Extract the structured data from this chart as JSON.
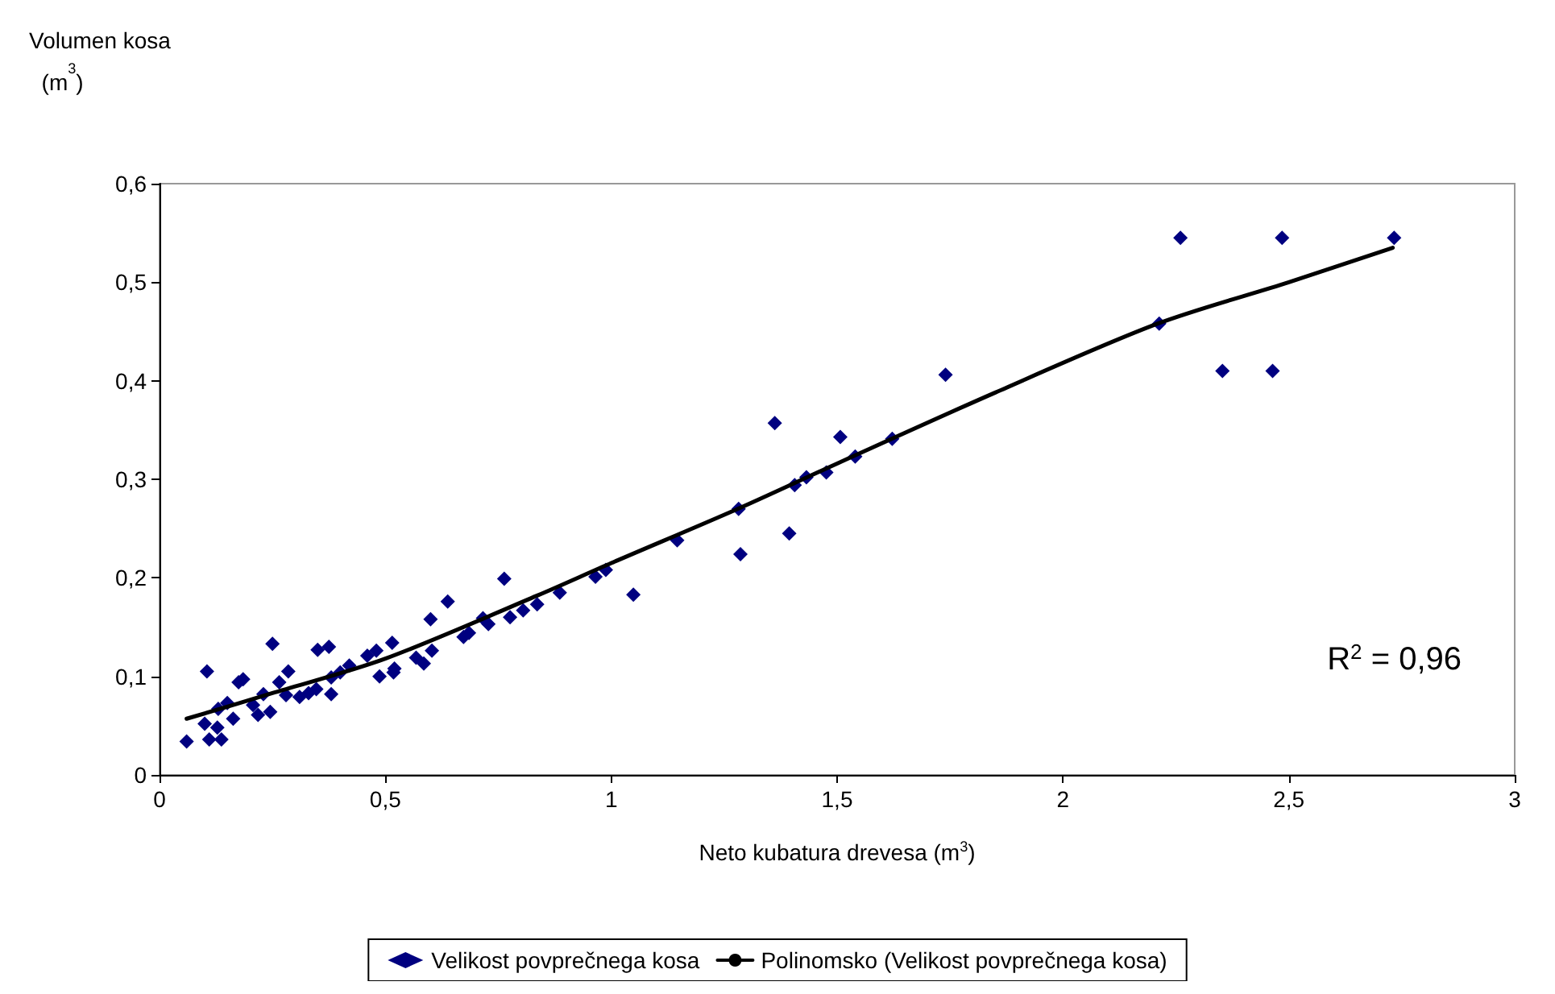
{
  "chart_data": {
    "type": "scatter",
    "xlabel": "Neto kubatura drevesa (m$^{3}$)",
    "ylabel": "Volumen kosa (m$^{3}$)",
    "xlim": [
      0,
      3
    ],
    "xticks": [
      0,
      {
        "value": 0.5,
        "label": "0,5"
      },
      1,
      {
        "value": 1.5,
        "label": "1,5"
      },
      2,
      {
        "value": 2.5,
        "label": "2,5"
      },
      3
    ],
    "ylim": [
      0,
      0.6
    ],
    "yticks": [
      0,
      {
        "value": 0.1,
        "label": "0,1"
      },
      {
        "value": 0.2,
        "label": "0,2"
      },
      {
        "value": 0.3,
        "label": "0,3"
      },
      {
        "value": 0.4,
        "label": "0,4"
      },
      {
        "value": 0.5,
        "label": "0,5"
      },
      {
        "value": 0.6,
        "label": "0,6"
      }
    ],
    "grid": false,
    "legend": "bottom",
    "annotations": [
      "R$^{2}$ = 0,96"
    ],
    "series": [
      {
        "name": "Velikost povprečnega kosa",
        "marker": "diamond",
        "color": "#000080",
        "x": [
          0.06,
          0.105,
          0.1,
          0.11,
          0.128,
          0.137,
          0.13,
          0.15,
          0.163,
          0.175,
          0.185,
          0.207,
          0.218,
          0.23,
          0.245,
          0.25,
          0.265,
          0.285,
          0.28,
          0.31,
          0.33,
          0.347,
          0.35,
          0.375,
          0.38,
          0.38,
          0.4,
          0.42,
          0.46,
          0.48,
          0.487,
          0.515,
          0.52,
          0.518,
          0.568,
          0.585,
          0.603,
          0.6,
          0.638,
          0.673,
          0.685,
          0.716,
          0.728,
          0.763,
          0.776,
          0.805,
          0.836,
          0.886,
          0.965,
          0.988,
          1.049,
          1.146,
          1.282,
          1.286,
          1.362,
          1.394,
          1.406,
          1.432,
          1.476,
          1.507,
          1.54,
          1.622,
          1.74,
          2.213,
          2.26,
          2.353,
          2.464,
          2.485,
          2.733
        ],
        "values": [
          0.034,
          0.105,
          0.052,
          0.036,
          0.048,
          0.036,
          0.067,
          0.073,
          0.057,
          0.094,
          0.097,
          0.071,
          0.061,
          0.082,
          0.064,
          0.133,
          0.094,
          0.105,
          0.081,
          0.079,
          0.083,
          0.087,
          0.127,
          0.13,
          0.082,
          0.099,
          0.104,
          0.111,
          0.121,
          0.126,
          0.1,
          0.134,
          0.108,
          0.104,
          0.119,
          0.113,
          0.126,
          0.158,
          0.176,
          0.14,
          0.144,
          0.159,
          0.153,
          0.199,
          0.16,
          0.167,
          0.173,
          0.185,
          0.201,
          0.208,
          0.183,
          0.238,
          0.27,
          0.224,
          0.357,
          0.245,
          0.294,
          0.302,
          0.307,
          0.343,
          0.323,
          0.341,
          0.406,
          0.458,
          0.545,
          0.41,
          0.41,
          0.545,
          0.545
        ]
      },
      {
        "name": "Polinomsko (Velikost povprečnega kosa)",
        "type": "line",
        "marker": "none",
        "line_style": "solid",
        "color": "#000000",
        "x": [
          0.06,
          0.25,
          0.5,
          0.836,
          1.0,
          1.28,
          1.5,
          1.85,
          2.21,
          2.5,
          2.73
        ],
        "values": [
          0.057,
          0.083,
          0.118,
          0.182,
          0.215,
          0.27,
          0.316,
          0.388,
          0.458,
          0.5,
          0.535
        ]
      }
    ]
  }
}
